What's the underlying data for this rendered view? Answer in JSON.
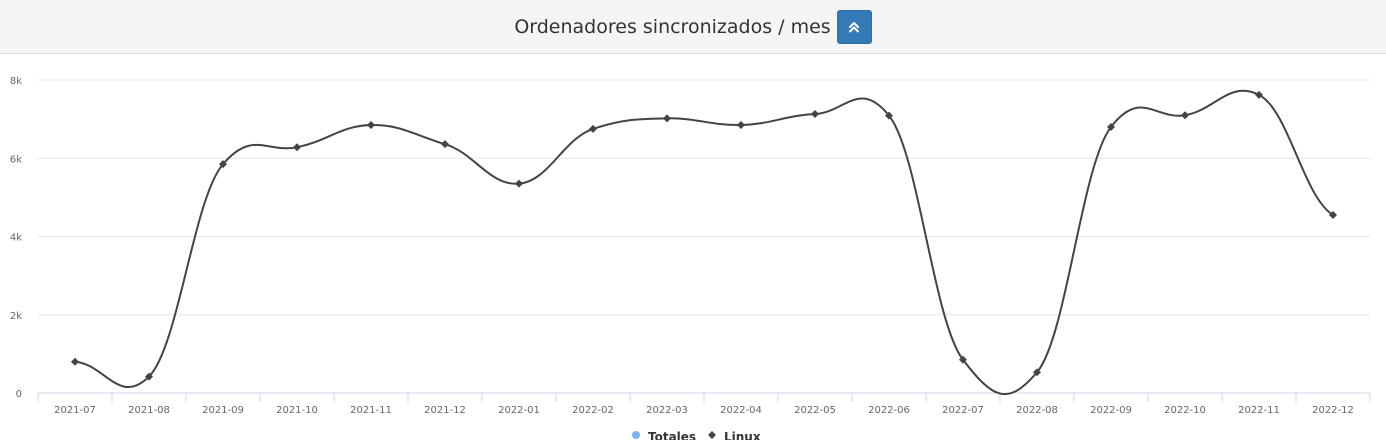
{
  "panel": {
    "title": "Ordenadores sincronizados / mes",
    "collapse_icon": "double-chevron-up-icon"
  },
  "colors": {
    "line": "#434348",
    "totales": "#7cb5ec",
    "grid": "#e6e6e6",
    "axis_text": "#666666",
    "button": "#337ab7"
  },
  "chart_data": {
    "type": "line",
    "smoothing": "spline",
    "categories": [
      "2021-07",
      "2021-08",
      "2021-09",
      "2021-10",
      "2021-11",
      "2021-12",
      "2022-01",
      "2022-02",
      "2022-03",
      "2022-04",
      "2022-05",
      "2022-06",
      "2022-07",
      "2022-08",
      "2022-09",
      "2022-10",
      "2022-11",
      "2022-12"
    ],
    "series": [
      {
        "name": "Linux",
        "color": "#434348",
        "marker": "diamond",
        "values": [
          800,
          420,
          5850,
          6280,
          6850,
          6360,
          5350,
          6750,
          7020,
          6850,
          7130,
          7090,
          850,
          530,
          6800,
          7100,
          7620,
          4550
        ]
      }
    ],
    "ylim": [
      0,
      8000
    ],
    "yticks": [
      0,
      2000,
      4000,
      6000,
      8000
    ],
    "ytick_labels": [
      "0",
      "2k",
      "4k",
      "6k",
      "8k"
    ],
    "xlabel": "",
    "ylabel": "",
    "grid": true,
    "legend": {
      "placement": "bottom-center",
      "items": [
        {
          "label": "Totales",
          "color": "#7cb5ec",
          "marker": "circle"
        },
        {
          "label": "Linux",
          "color": "#434348",
          "marker": "diamond"
        }
      ]
    }
  }
}
